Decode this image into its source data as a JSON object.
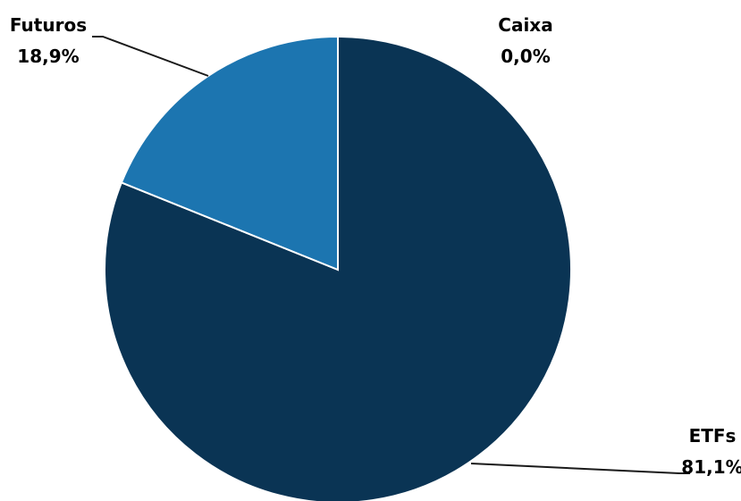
{
  "chart_data": {
    "type": "pie",
    "title": "",
    "slices": [
      {
        "label": "ETFs",
        "value": 81.1,
        "value_label": "81,1%",
        "color": "#0a3454"
      },
      {
        "label": "Futuros",
        "value": 18.9,
        "value_label": "18,9%",
        "color": "#1c75b0"
      },
      {
        "label": "Caixa",
        "value": 0.0,
        "value_label": "0,0%",
        "color": "#7fb8e0"
      }
    ],
    "legend": "none",
    "slice_border_color": "#ffffff",
    "leader_line_color": "#1a1a1a"
  }
}
